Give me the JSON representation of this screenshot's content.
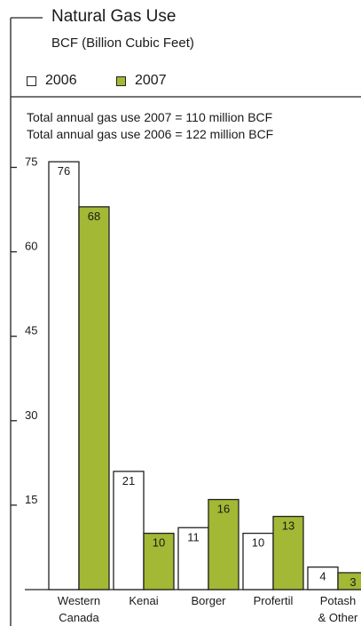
{
  "title": "Natural Gas Use",
  "subtitle": "BCF (Billion Cubic Feet)",
  "legend": [
    {
      "label": "2006",
      "color": "#ffffff"
    },
    {
      "label": "2007",
      "color": "#a3b834"
    }
  ],
  "notes": [
    "Total annual gas use 2007 = 110 million BCF",
    "Total annual gas use 2006 = 122 million BCF"
  ],
  "chart_data": {
    "type": "bar",
    "title": "Natural Gas Use",
    "subtitle": "BCF (Billion Cubic Feet)",
    "categories": [
      "Western Canada",
      "Kenai",
      "Borger",
      "Profertil",
      "Potash & Other"
    ],
    "category_lines": [
      [
        "Western",
        "Canada"
      ],
      [
        "Kenai"
      ],
      [
        "Borger"
      ],
      [
        "Profertil"
      ],
      [
        "Potash",
        "& Other"
      ]
    ],
    "series": [
      {
        "name": "2006",
        "color": "#ffffff",
        "values": [
          76,
          21,
          11,
          10,
          4
        ]
      },
      {
        "name": "2007",
        "color": "#a3b834",
        "values": [
          68,
          10,
          16,
          13,
          3
        ]
      }
    ],
    "yticks": [
      15,
      30,
      45,
      60,
      75
    ],
    "ylim": [
      0,
      76
    ],
    "legend_position": "top-left",
    "grid": false
  }
}
